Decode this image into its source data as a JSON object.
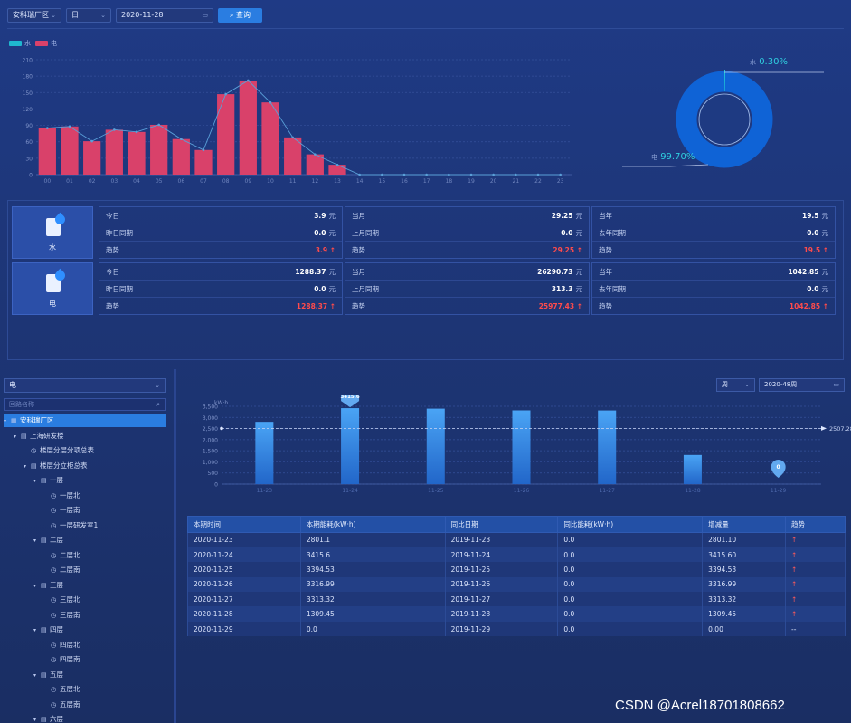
{
  "filters": {
    "site": "安科瑞厂区",
    "period": "日",
    "date": "2020-11-28",
    "query_label": "查询"
  },
  "top_chart": {
    "legend": [
      {
        "name": "水",
        "color": "#1fb7cf"
      },
      {
        "name": "电",
        "color": "#d9416a"
      }
    ]
  },
  "donut": {
    "water_label": "水",
    "water_pct": "0.30%",
    "elec_label": "电",
    "elec_pct": "99.70%"
  },
  "cards": [
    {
      "name": "水",
      "today_label": "今日",
      "today": "3.9",
      "yesterday_label": "昨日同期",
      "yesterday": "0.0",
      "trend_label": "趋势",
      "trend_day": "3.9",
      "month_label": "当月",
      "month": "29.25",
      "last_month_label": "上月同期",
      "last_month": "0.0",
      "trend_month": "29.25",
      "year_label": "当年",
      "year": "19.5",
      "last_year_label": "去年同期",
      "last_year": "0.0",
      "trend_year": "19.5",
      "unit": "元"
    },
    {
      "name": "电",
      "today_label": "今日",
      "today": "1288.37",
      "yesterday_label": "昨日同期",
      "yesterday": "0.0",
      "trend_label": "趋势",
      "trend_day": "1288.37",
      "month_label": "当月",
      "month": "26290.73",
      "last_month_label": "上月同期",
      "last_month": "313.3",
      "trend_month": "25977.43",
      "year_label": "当年",
      "year": "1042.85",
      "last_year_label": "去年同期",
      "last_year": "0.0",
      "trend_year": "1042.85",
      "unit": "元"
    }
  ],
  "left_panel": {
    "type_select": "电",
    "search_placeholder": "回路名称",
    "tree": [
      {
        "label": "安科瑞厂区",
        "level": 0,
        "kind": "root",
        "active": true
      },
      {
        "label": "上海研发楼",
        "level": 1,
        "kind": "building"
      },
      {
        "label": "楼层分层分项总表",
        "level": 2,
        "kind": "meter"
      },
      {
        "label": "楼层分立柜总表",
        "level": 2,
        "kind": "group"
      },
      {
        "label": "一层",
        "level": 3,
        "kind": "floor"
      },
      {
        "label": "一层北",
        "level": 4,
        "kind": "meter"
      },
      {
        "label": "一层南",
        "level": 4,
        "kind": "meter"
      },
      {
        "label": "一层研发室1",
        "level": 4,
        "kind": "meter"
      },
      {
        "label": "二层",
        "level": 3,
        "kind": "floor"
      },
      {
        "label": "二层北",
        "level": 4,
        "kind": "meter"
      },
      {
        "label": "二层南",
        "level": 4,
        "kind": "meter"
      },
      {
        "label": "三层",
        "level": 3,
        "kind": "floor"
      },
      {
        "label": "三层北",
        "level": 4,
        "kind": "meter"
      },
      {
        "label": "三层南",
        "level": 4,
        "kind": "meter"
      },
      {
        "label": "四层",
        "level": 3,
        "kind": "floor"
      },
      {
        "label": "四层北",
        "level": 4,
        "kind": "meter"
      },
      {
        "label": "四层南",
        "level": 4,
        "kind": "meter"
      },
      {
        "label": "五层",
        "level": 3,
        "kind": "floor"
      },
      {
        "label": "五层北",
        "level": 4,
        "kind": "meter"
      },
      {
        "label": "五层南",
        "level": 4,
        "kind": "meter"
      },
      {
        "label": "六层",
        "level": 3,
        "kind": "floor"
      }
    ]
  },
  "right_controls": {
    "period": "周",
    "week": "2020-48周"
  },
  "table": {
    "headers": [
      "本期时间",
      "本期能耗(kW·h)",
      "同比日期",
      "同比能耗(kW·h)",
      "增减量",
      "趋势"
    ],
    "rows": [
      [
        "2020-11-23",
        "2801.1",
        "2019-11-23",
        "0.0",
        "2801.10",
        "↑"
      ],
      [
        "2020-11-24",
        "3415.6",
        "2019-11-24",
        "0.0",
        "3415.60",
        "↑"
      ],
      [
        "2020-11-25",
        "3394.53",
        "2019-11-25",
        "0.0",
        "3394.53",
        "↑"
      ],
      [
        "2020-11-26",
        "3316.99",
        "2019-11-26",
        "0.0",
        "3316.99",
        "↑"
      ],
      [
        "2020-11-27",
        "3313.32",
        "2019-11-27",
        "0.0",
        "3313.32",
        "↑"
      ],
      [
        "2020-11-28",
        "1309.45",
        "2019-11-28",
        "0.0",
        "1309.45",
        "↑"
      ],
      [
        "2020-11-29",
        "0.0",
        "2019-11-29",
        "0.0",
        "0.00",
        "--"
      ]
    ]
  },
  "watermark": "CSDN @Acrel18701808662",
  "chart_data": [
    {
      "type": "bar",
      "title": "",
      "categories": [
        "00",
        "01",
        "02",
        "03",
        "04",
        "05",
        "06",
        "07",
        "08",
        "09",
        "10",
        "11",
        "12",
        "13",
        "14",
        "15",
        "16",
        "17",
        "18",
        "19",
        "20",
        "21",
        "22",
        "23"
      ],
      "series": [
        {
          "name": "电",
          "type": "bar",
          "values": [
            85,
            88,
            61,
            82,
            78,
            91,
            65,
            45,
            147,
            172,
            132,
            68,
            37,
            18,
            0,
            0,
            0,
            0,
            0,
            0,
            0,
            0,
            0,
            0
          ]
        },
        {
          "name": "水",
          "type": "line",
          "values": [
            85,
            88,
            61,
            82,
            78,
            91,
            65,
            45,
            147,
            172,
            132,
            68,
            37,
            18,
            0,
            0,
            0,
            0,
            0,
            0,
            0,
            0,
            0,
            0
          ]
        }
      ],
      "yticks": [
        0,
        30,
        60,
        90,
        120,
        150,
        180,
        210
      ],
      "ylim": [
        0,
        210
      ]
    },
    {
      "type": "pie",
      "slices": [
        {
          "name": "水",
          "value": 0.3
        },
        {
          "name": "电",
          "value": 99.7
        }
      ]
    },
    {
      "type": "bar",
      "title": "",
      "ylabel": "kW·h",
      "categories": [
        "11-23",
        "11-24",
        "11-25",
        "11-26",
        "11-27",
        "11-28",
        "11-29"
      ],
      "values": [
        2801.1,
        3415.6,
        3394.53,
        3316.99,
        3313.32,
        1309.45,
        0.0
      ],
      "yticks": [
        0,
        500,
        1000,
        1500,
        2000,
        2500,
        3000,
        3500
      ],
      "ytick_labels": [
        "0",
        "500",
        "1,000",
        "1,500",
        "2,000",
        "2,500",
        "3,000",
        "3,500"
      ],
      "ylim": [
        0,
        3500
      ],
      "max_marker": "3415.6",
      "min_marker": "0",
      "average_line": 2507.28,
      "average_label": "2507.28"
    }
  ]
}
